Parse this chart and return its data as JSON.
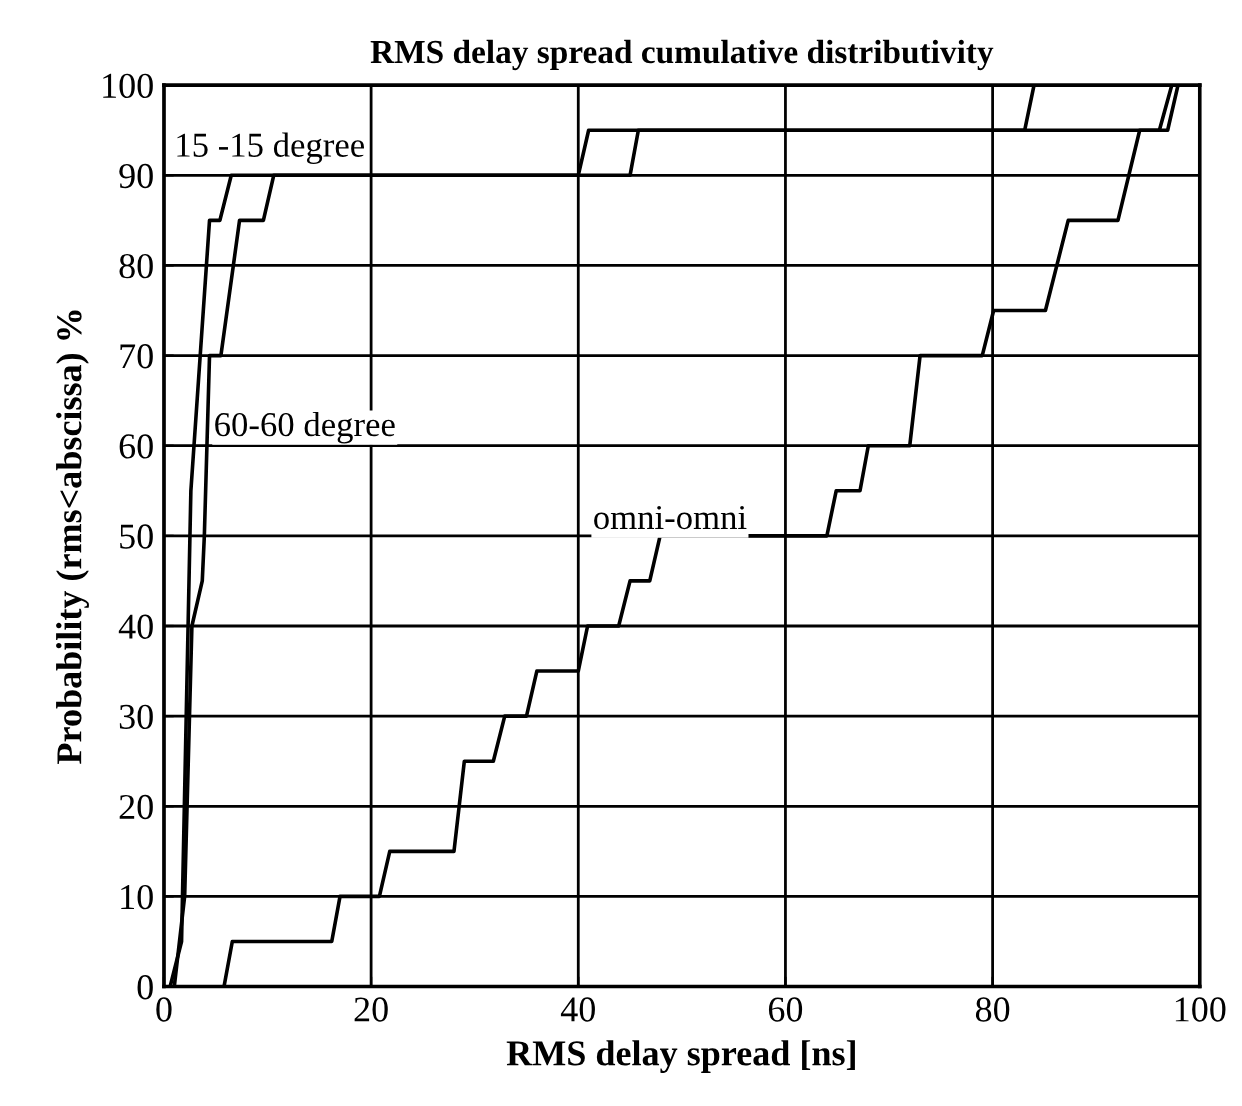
{
  "chart_data": {
    "type": "line",
    "title": "RMS delay spread cumulative distributivity",
    "xlabel": "RMS delay spread [ns]",
    "ylabel": "Probability (rms<abscissa) %",
    "series": [
      {
        "name": "15 -15 degree",
        "color": "#000000",
        "x": [
          0.6,
          1.7,
          2.6,
          4.4,
          5.4,
          6.5,
          40,
          41,
          83.1,
          84
        ],
        "values": [
          0,
          5,
          55,
          85,
          85,
          90,
          90,
          95,
          95,
          100
        ]
      },
      {
        "name": "60-60 degree",
        "color": "#000000",
        "x": [
          1.0,
          2.0,
          2.7,
          3.7,
          3.9,
          4.4,
          5.5,
          6.7,
          7.3,
          9.6,
          10.6,
          45,
          45.8,
          96.1,
          97.3
        ],
        "values": [
          0,
          10,
          40,
          45,
          50,
          70,
          70,
          80,
          85,
          85,
          90,
          90,
          95,
          95,
          100
        ]
      },
      {
        "name": "omni-omni",
        "color": "#000000",
        "x": [
          5.8,
          6.6,
          16.2,
          17,
          20.8,
          21.8,
          28.0,
          29.0,
          31.8,
          32.9,
          35.0,
          36.0,
          40.0,
          40.9,
          43.9,
          45.0,
          46.9,
          47.9,
          64.0,
          64.9,
          67.2,
          68.0,
          72.0,
          73.0,
          79.0,
          80.1,
          85.1,
          87.3,
          92.1,
          94.2,
          96.9,
          97.9
        ],
        "values": [
          0,
          5,
          5,
          10,
          10,
          15,
          15,
          25,
          25,
          30,
          30,
          35,
          35,
          40,
          40,
          45,
          45,
          50,
          50,
          55,
          55,
          60,
          60,
          70,
          70,
          75,
          75,
          85,
          85,
          95,
          95,
          100
        ]
      }
    ],
    "xlim": [
      0,
      100
    ],
    "xticks": [
      0,
      20,
      40,
      60,
      80,
      100
    ],
    "ylim": [
      0,
      100
    ],
    "yticks": [
      0,
      10,
      20,
      30,
      40,
      50,
      60,
      70,
      80,
      90,
      100
    ],
    "grid": true,
    "line_style": "solid"
  }
}
